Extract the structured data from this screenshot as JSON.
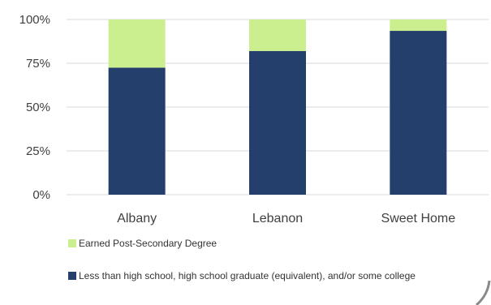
{
  "chart_data": {
    "type": "bar",
    "stacked": true,
    "categories": [
      "Albany",
      "Lebanon",
      "Sweet Home"
    ],
    "series": [
      {
        "name": "Less than high school, high school graduate (equivalent), and/or some college",
        "color": "#243f6b",
        "values": [
          72.5,
          82,
          93.5
        ]
      },
      {
        "name": "Earned Post-Secondary Degree",
        "color": "#cbef8e",
        "values": [
          27.5,
          18,
          6.5
        ]
      }
    ],
    "yticks": [
      "0%",
      "25%",
      "50%",
      "75%",
      "100%"
    ],
    "ylim": [
      0,
      100
    ],
    "legend_position": "bottom",
    "grid": true
  }
}
